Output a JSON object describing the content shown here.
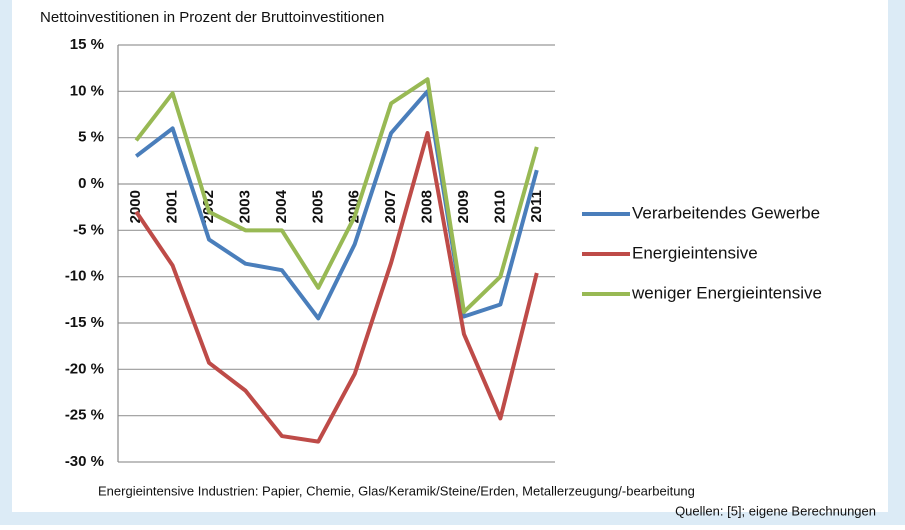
{
  "chart_data": {
    "type": "line",
    "title": "Nettoinvestitionen in Prozent der Bruttoinvestitionen",
    "categories": [
      "2000",
      "2001",
      "2002",
      "2003",
      "2004",
      "2005",
      "2006",
      "2007",
      "2008",
      "2009",
      "2010",
      "2011"
    ],
    "series": [
      {
        "name": "Verarbeitendes Gewerbe",
        "color": "#4a7ebb",
        "values": [
          3,
          6,
          -6,
          -8.6,
          -9.3,
          -14.5,
          -6.5,
          5.5,
          10,
          -14.3,
          -13,
          1.5
        ]
      },
      {
        "name": "Energieintensive",
        "color": "#be4b48",
        "values": [
          -3,
          -8.8,
          -19.3,
          -22.3,
          -27.2,
          -27.8,
          -20.5,
          -8.5,
          5.5,
          -16.2,
          -25.3,
          -9.6
        ]
      },
      {
        "name": "weniger Energieintensive",
        "color": "#98b954",
        "values": [
          4.7,
          9.8,
          -3,
          -5,
          -5,
          -11.2,
          -3.5,
          8.7,
          11.3,
          -13.8,
          -10,
          4
        ]
      }
    ],
    "ylim": [
      -30,
      15
    ],
    "yticks": [
      {
        "value": -30,
        "label": "-30 %"
      },
      {
        "value": -25,
        "label": "-25 %"
      },
      {
        "value": -20,
        "label": "-20 %"
      },
      {
        "value": -15,
        "label": "-15 %"
      },
      {
        "value": -10,
        "label": "-10 %"
      },
      {
        "value": -5,
        "label": "-5 %"
      },
      {
        "value": 0,
        "label": "0 %"
      },
      {
        "value": 5,
        "label": "5 %"
      },
      {
        "value": 10,
        "label": "10 %"
      },
      {
        "value": 15,
        "label": "15 %"
      }
    ],
    "grid": true,
    "legend": "right",
    "note": "Energieintensive Industrien: Papier, Chemie, Glas/Keramik/Steine/Erden, Metallerzeugung/-bearbeitung",
    "source": "Quellen: [5]; eigene Berechnungen"
  }
}
